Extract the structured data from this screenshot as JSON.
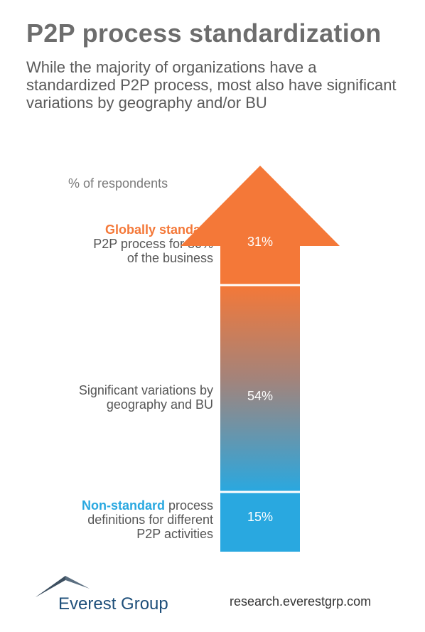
{
  "header": {
    "title": "P2P process standardization",
    "subtitle": "While the majority of organizations have a standardized P2P process, most also have significant variations by geography and/or BU"
  },
  "chart_data": {
    "type": "bar",
    "unit_label": "% of respondents",
    "categories": [
      "Globally standard P2P process for 80% of the business",
      "Significant variations by geography and BU",
      "Non-standard process definitions for different P2P activities"
    ],
    "values": [
      31,
      54,
      15
    ],
    "value_labels": [
      "31%",
      "54%",
      "15%"
    ],
    "segments": [
      {
        "highlight": "Globally standard",
        "rest_lines": [
          "P2P process for 80%",
          "of the business"
        ],
        "value_label": "31%"
      },
      {
        "highlight": "",
        "rest_lines": [
          "Significant variations by",
          "geography and BU"
        ],
        "value_label": "54%"
      },
      {
        "highlight": "Non-standard",
        "first_line_suffix": " process",
        "rest_lines": [
          "definitions for different",
          "P2P activities"
        ],
        "value_label": "15%"
      }
    ],
    "stacked_order": "top-to-bottom",
    "colors": {
      "top": "#f47838",
      "bottom": "#29a8e0",
      "divider": "#ffffff",
      "highlight_top": "#f47838",
      "highlight_bottom": "#29a8e0"
    }
  },
  "footer": {
    "logo_text": "Everest Group",
    "url": "research.everestgrp.com"
  },
  "colors": {
    "title": "#6d6d6d",
    "logo": "#1e4f7a"
  }
}
